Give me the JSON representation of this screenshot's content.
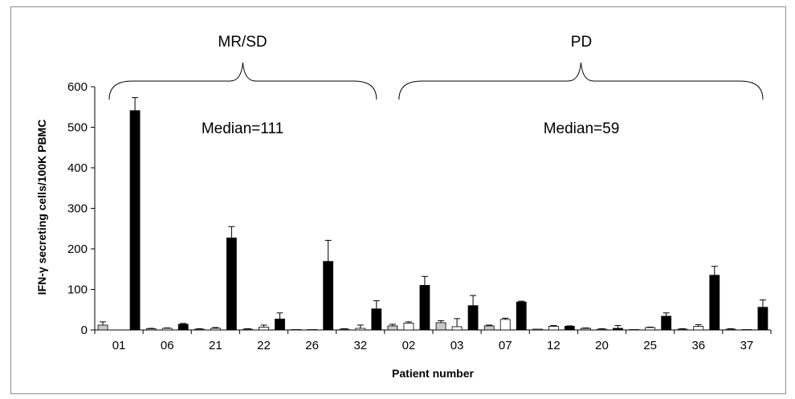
{
  "chart_data": {
    "type": "bar",
    "title": "",
    "xlabel": "Patient number",
    "ylabel": "IFN-γ secreting cells/100K PBMC",
    "ylim": [
      0,
      600
    ],
    "yticks": [
      0,
      100,
      200,
      300,
      400,
      500,
      600
    ],
    "grid": false,
    "categories": [
      "01",
      "06",
      "21",
      "22",
      "26",
      "32",
      "02",
      "03",
      "07",
      "12",
      "20",
      "25",
      "36",
      "37"
    ],
    "series": [
      {
        "color": "#c8c8c8",
        "values": [
          12,
          3,
          2,
          2,
          1,
          2,
          10,
          18,
          10,
          2,
          4,
          1,
          2,
          2
        ],
        "errors": [
          8,
          1,
          1,
          1,
          0,
          1,
          4,
          5,
          2,
          0,
          1,
          0,
          1,
          1
        ]
      },
      {
        "color": "#ffffff",
        "values": [
          0,
          4,
          4,
          7,
          1,
          4,
          17,
          8,
          26,
          9,
          2,
          6,
          9,
          1
        ],
        "errors": [
          0,
          1,
          2,
          5,
          0,
          8,
          3,
          20,
          3,
          2,
          1,
          1,
          4,
          0
        ]
      },
      {
        "color": "#000000",
        "values": [
          541,
          14,
          227,
          27,
          169,
          52,
          110,
          60,
          69,
          9,
          4,
          34,
          135,
          56
        ],
        "errors": [
          32,
          2,
          28,
          15,
          52,
          20,
          22,
          25,
          2,
          1,
          7,
          8,
          22,
          18
        ]
      }
    ],
    "groups": [
      {
        "label": "MR/SD",
        "median_label": "Median=111",
        "categories": [
          "01",
          "06",
          "21",
          "22",
          "26",
          "32"
        ]
      },
      {
        "label": "PD",
        "median_label": "Median=59",
        "categories": [
          "02",
          "03",
          "07",
          "12",
          "20",
          "25",
          "36",
          "37"
        ]
      }
    ]
  }
}
